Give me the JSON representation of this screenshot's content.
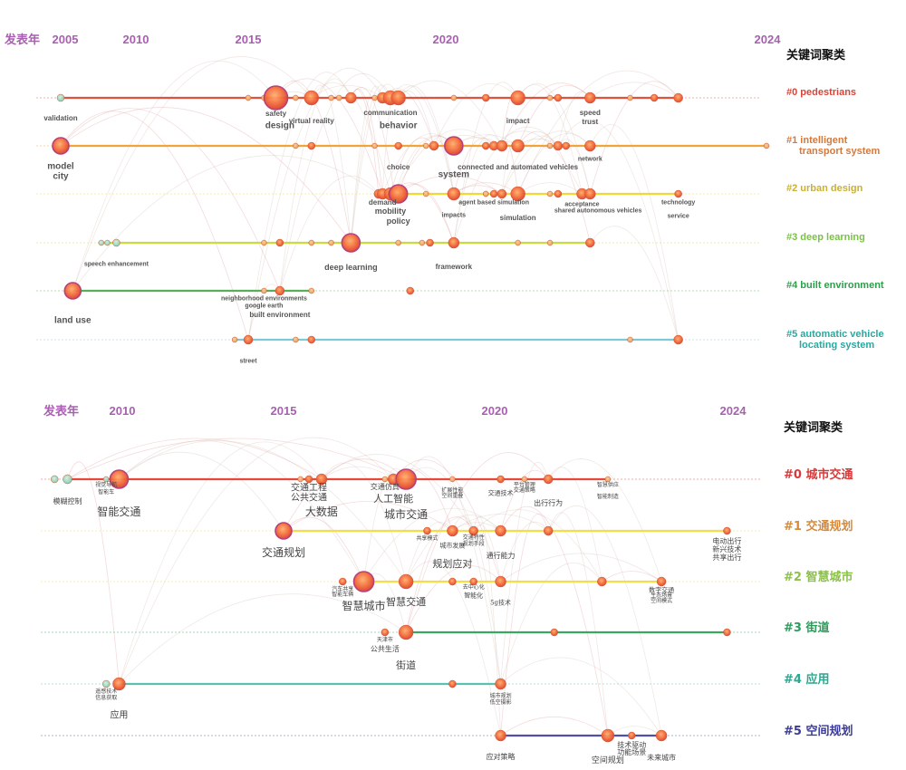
{
  "top": {
    "axis_label": "发表年",
    "legend_title": "关键词聚类",
    "ticks": [
      2005,
      2010,
      2015,
      2020,
      2024
    ],
    "tick_labels": [
      "2005",
      "2010",
      "2015",
      "2020",
      "2024"
    ],
    "clusters": [
      {
        "label": "#0 pedestrians",
        "label_color": "#d6453a",
        "line_color": "#e0523f",
        "span": [
          2005.0,
          2022.9
        ],
        "nodes": [
          [
            2005.0,
            4
          ],
          [
            2015.0,
            3
          ],
          [
            2015.4,
            3
          ],
          [
            2015.7,
            13
          ],
          [
            2016.2,
            3
          ],
          [
            2016.6,
            8
          ],
          [
            2017.1,
            3
          ],
          [
            2017.3,
            3
          ],
          [
            2017.6,
            6
          ],
          [
            2018.2,
            3
          ],
          [
            2018.4,
            6
          ],
          [
            2018.6,
            8
          ],
          [
            2018.8,
            8
          ],
          [
            2020.1,
            3
          ],
          [
            2020.5,
            3
          ],
          [
            2020.5,
            4
          ],
          [
            2020.9,
            8
          ],
          [
            2021.3,
            3
          ],
          [
            2021.4,
            4
          ],
          [
            2021.8,
            6
          ],
          [
            2022.3,
            3
          ],
          [
            2022.6,
            4
          ],
          [
            2022.9,
            5
          ]
        ],
        "keywords": [
          {
            "text": "validation",
            "year": 2005.0
          },
          {
            "text": "safety",
            "year": 2015.7
          },
          {
            "text": "design",
            "year": 2015.8
          },
          {
            "text": "virtual reality",
            "year": 2016.6
          },
          {
            "text": "communication",
            "year": 2018.6
          },
          {
            "text": "behavior",
            "year": 2018.8
          },
          {
            "text": "impact",
            "year": 2020.9
          },
          {
            "text": "speed",
            "year": 2021.8
          },
          {
            "text": "trust",
            "year": 2021.8
          }
        ]
      },
      {
        "label": "#1 intelligent transport system",
        "label_color": "#d6783a",
        "line_color": "#f0a43a",
        "span": [
          2005.0,
          2024.0
        ],
        "nodes": [
          [
            2005.0,
            9
          ],
          [
            2016.2,
            3
          ],
          [
            2016.6,
            4
          ],
          [
            2018.2,
            3
          ],
          [
            2018.8,
            4
          ],
          [
            2019.5,
            3
          ],
          [
            2019.7,
            5
          ],
          [
            2020.1,
            10
          ],
          [
            2020.5,
            3
          ],
          [
            2020.5,
            4
          ],
          [
            2020.6,
            5
          ],
          [
            2020.7,
            6
          ],
          [
            2020.9,
            7
          ],
          [
            2021.3,
            3
          ],
          [
            2021.4,
            5
          ],
          [
            2021.5,
            4
          ],
          [
            2021.8,
            6
          ],
          [
            2024.0,
            3
          ]
        ],
        "keywords": [
          {
            "text": "model",
            "year": 2005.0
          },
          {
            "text": "city",
            "year": 2005.0
          },
          {
            "text": "choice",
            "year": 2018.8
          },
          {
            "text": "system",
            "year": 2020.1
          },
          {
            "text": "connected and automated vehicles",
            "year": 2020.9
          },
          {
            "text": "network",
            "year": 2021.8
          }
        ]
      },
      {
        "label": "#2 urban design",
        "label_color": "#c8b03a",
        "line_color": "#f2d832",
        "span": [
          2018.3,
          2022.9
        ],
        "nodes": [
          [
            2018.3,
            5
          ],
          [
            2018.4,
            6
          ],
          [
            2018.6,
            7
          ],
          [
            2018.7,
            7
          ],
          [
            2018.8,
            10
          ],
          [
            2019.5,
            3
          ],
          [
            2020.1,
            7
          ],
          [
            2020.5,
            3
          ],
          [
            2020.5,
            3
          ],
          [
            2020.6,
            4
          ],
          [
            2020.7,
            5
          ],
          [
            2020.9,
            8
          ],
          [
            2021.3,
            3
          ],
          [
            2021.4,
            4
          ],
          [
            2021.7,
            6
          ],
          [
            2021.8,
            6
          ],
          [
            2022.9,
            4
          ]
        ],
        "keywords": [
          {
            "text": "demand",
            "year": 2018.4
          },
          {
            "text": "mobility",
            "year": 2018.6
          },
          {
            "text": "policy",
            "year": 2018.8
          },
          {
            "text": "agent based simulation",
            "year": 2020.6
          },
          {
            "text": "impacts",
            "year": 2020.1
          },
          {
            "text": "simulation",
            "year": 2020.9
          },
          {
            "text": "acceptance",
            "year": 2021.7
          },
          {
            "text": "shared autonomous vehicles",
            "year": 2021.9
          },
          {
            "text": "technology",
            "year": 2022.9
          },
          {
            "text": "service",
            "year": 2022.9
          }
        ]
      },
      {
        "label": "#3 deep learning",
        "label_color": "#7cc04a",
        "line_color": "#c8dc40",
        "span": [
          2007.7,
          2021.8
        ],
        "nodes": [
          [
            2007.7,
            3
          ],
          [
            2008.1,
            3
          ],
          [
            2008.7,
            4
          ],
          [
            2015.4,
            3
          ],
          [
            2015.8,
            4
          ],
          [
            2016.6,
            3
          ],
          [
            2017.1,
            3
          ],
          [
            2017.6,
            10
          ],
          [
            2018.8,
            3
          ],
          [
            2019.4,
            3
          ],
          [
            2019.6,
            4
          ],
          [
            2020.1,
            6
          ],
          [
            2020.9,
            3
          ],
          [
            2021.3,
            3
          ],
          [
            2021.8,
            5
          ]
        ],
        "keywords": [
          {
            "text": "speech enhancement",
            "year": 2008.7
          },
          {
            "text": "deep learning",
            "year": 2017.6
          },
          {
            "text": "framework",
            "year": 2020.1
          }
        ]
      },
      {
        "label": "#4 built environment",
        "label_color": "#2e9e4a",
        "line_color": "#5aad5a",
        "span": [
          2005.8,
          2016.6
        ],
        "nodes": [
          [
            2005.8,
            9
          ],
          [
            2015.4,
            3
          ],
          [
            2015.8,
            5
          ],
          [
            2016.6,
            3
          ],
          [
            2019.1,
            4
          ]
        ],
        "keywords": [
          {
            "text": "neighborhood environments",
            "year": 2015.4
          },
          {
            "text": "google earth",
            "year": 2015.4
          },
          {
            "text": "built environment",
            "year": 2015.8
          },
          {
            "text": "land use",
            "year": 2005.8
          }
        ]
      },
      {
        "label": "#5 automatic vehicle locating system",
        "label_color": "#2aa8a0",
        "line_color": "#80c8d4",
        "span": [
          2014.4,
          2022.9
        ],
        "nodes": [
          [
            2014.4,
            3
          ],
          [
            2015.0,
            5
          ],
          [
            2016.2,
            3
          ],
          [
            2016.6,
            4
          ],
          [
            2022.3,
            3
          ],
          [
            2022.9,
            5
          ]
        ],
        "keywords": [
          {
            "text": "street",
            "year": 2015.0
          }
        ]
      }
    ]
  },
  "bottom": {
    "axis_label": "发表年",
    "legend_title": "关键词聚类",
    "ticks": [
      2010,
      2015,
      2020,
      2024
    ],
    "tick_labels": [
      "2010",
      "2015",
      "2020",
      "2024"
    ],
    "clusters": [
      {
        "label": "#0 城市交通",
        "label_color": "#d63a3a",
        "line_color": "#e8473a",
        "span": [
          2008.3,
          2021.9
        ],
        "nodes": [
          [
            2007.9,
            4
          ],
          [
            2008.3,
            5
          ],
          [
            2009.5,
            3
          ],
          [
            2009.9,
            10
          ],
          [
            2015.4,
            3
          ],
          [
            2015.6,
            4
          ],
          [
            2015.9,
            6
          ],
          [
            2017.4,
            3
          ],
          [
            2017.6,
            6
          ],
          [
            2017.9,
            11
          ],
          [
            2019.0,
            3
          ],
          [
            2020.1,
            4
          ],
          [
            2020.5,
            3
          ],
          [
            2020.9,
            5
          ],
          [
            2021.9,
            3
          ]
        ],
        "keywords": [
          {
            "text": "模糊控制",
            "year": 2008.3
          },
          {
            "text": "视觉导航",
            "year": 2009.5
          },
          {
            "text": "智能车",
            "year": 2009.5
          },
          {
            "text": "智能交通",
            "year": 2009.9
          },
          {
            "text": "交通工程",
            "year": 2015.6
          },
          {
            "text": "公共交通",
            "year": 2015.6
          },
          {
            "text": "大数据",
            "year": 2015.9
          },
          {
            "text": "交通仿真",
            "year": 2017.4
          },
          {
            "text": "人工智能",
            "year": 2017.6
          },
          {
            "text": "城市交通",
            "year": 2017.9
          },
          {
            "text": "扩展性能",
            "year": 2019.0
          },
          {
            "text": "空间重叠",
            "year": 2019.0
          },
          {
            "text": "交通技术",
            "year": 2020.1
          },
          {
            "text": "平台管理",
            "year": 2020.5
          },
          {
            "text": "交通策略",
            "year": 2020.5
          },
          {
            "text": "出行行为",
            "year": 2020.9
          },
          {
            "text": "智慧供应",
            "year": 2021.9
          },
          {
            "text": "智能制造",
            "year": 2021.9
          }
        ]
      },
      {
        "label": "#1 交通规划",
        "label_color": "#d68a3a",
        "line_color": "#f5dc48",
        "span": [
          2015.0,
          2023.9
        ],
        "nodes": [
          [
            2015.0,
            9
          ],
          [
            2018.4,
            4
          ],
          [
            2019.0,
            6
          ],
          [
            2019.5,
            5
          ],
          [
            2020.1,
            6
          ],
          [
            2020.9,
            5
          ],
          [
            2023.9,
            4
          ]
        ],
        "keywords": [
          {
            "text": "交通规划",
            "year": 2015.0
          },
          {
            "text": "共享模式",
            "year": 2018.4
          },
          {
            "text": "城市发展",
            "year": 2019.0
          },
          {
            "text": "交通特性",
            "year": 2019.5
          },
          {
            "text": "规划手段",
            "year": 2019.5
          },
          {
            "text": "通行能力",
            "year": 2020.1
          },
          {
            "text": "规划应对",
            "year": 2019.0
          },
          {
            "text": "电动出行",
            "year": 2023.9
          },
          {
            "text": "新兴技术",
            "year": 2023.9
          },
          {
            "text": "共享出行",
            "year": 2023.9
          }
        ]
      },
      {
        "label": "#2 智慧城市",
        "label_color": "#8cc04a",
        "line_color": "#f5dc48",
        "span": [
          2016.9,
          2022.8
        ],
        "nodes": [
          [
            2016.4,
            4
          ],
          [
            2016.9,
            11
          ],
          [
            2017.9,
            8
          ],
          [
            2019.0,
            4
          ],
          [
            2019.5,
            4
          ],
          [
            2020.1,
            6
          ],
          [
            2021.8,
            5
          ],
          [
            2022.8,
            5
          ]
        ],
        "keywords": [
          {
            "text": "汽车共享",
            "year": 2016.4
          },
          {
            "text": "智能车辆",
            "year": 2016.4
          },
          {
            "text": "智慧城市",
            "year": 2016.9
          },
          {
            "text": "智慧交通",
            "year": 2017.9
          },
          {
            "text": "去中心化",
            "year": 2019.5
          },
          {
            "text": "智能化",
            "year": 2019.5
          },
          {
            "text": "5g技术",
            "year": 2020.1
          },
          {
            "text": "数字交通",
            "year": 2022.8
          },
          {
            "text": "生态场景",
            "year": 2022.8
          },
          {
            "text": "空间模式",
            "year": 2022.8
          }
        ]
      },
      {
        "label": "#3 街道",
        "label_color": "#2a9e5a",
        "line_color": "#3aa860",
        "span": [
          2017.9,
          2023.9
        ],
        "nodes": [
          [
            2017.4,
            4
          ],
          [
            2017.9,
            8
          ],
          [
            2021.0,
            4
          ],
          [
            2023.9,
            4
          ]
        ],
        "keywords": [
          {
            "text": "天津市",
            "year": 2017.4
          },
          {
            "text": "公共生活",
            "year": 2017.4
          },
          {
            "text": "街道",
            "year": 2017.9
          }
        ]
      },
      {
        "label": "#4 应用",
        "label_color": "#2aa890",
        "line_color": "#5ac0b0",
        "span": [
          2009.9,
          2020.1
        ],
        "nodes": [
          [
            2009.5,
            4
          ],
          [
            2009.9,
            7
          ],
          [
            2019.0,
            4
          ],
          [
            2020.1,
            6
          ]
        ],
        "keywords": [
          {
            "text": "遥感技术",
            "year": 2009.5
          },
          {
            "text": "信息获取",
            "year": 2009.5
          },
          {
            "text": "应用",
            "year": 2009.9
          },
          {
            "text": "城市规划",
            "year": 2020.1
          },
          {
            "text": "低空摄影",
            "year": 2020.1
          }
        ]
      },
      {
        "label": "#5 空间规划",
        "label_color": "#3a3a9a",
        "line_color": "#5050a8",
        "span": [
          2020.1,
          2022.8
        ],
        "nodes": [
          [
            2020.1,
            6
          ],
          [
            2021.9,
            7
          ],
          [
            2022.3,
            4
          ],
          [
            2022.8,
            6
          ]
        ],
        "keywords": [
          {
            "text": "应对策略",
            "year": 2020.1
          },
          {
            "text": "空间规划",
            "year": 2021.9
          },
          {
            "text": "技术驱动",
            "year": 2022.3
          },
          {
            "text": "功能场景",
            "year": 2022.3
          },
          {
            "text": "未来城市",
            "year": 2022.8
          }
        ]
      }
    ]
  }
}
